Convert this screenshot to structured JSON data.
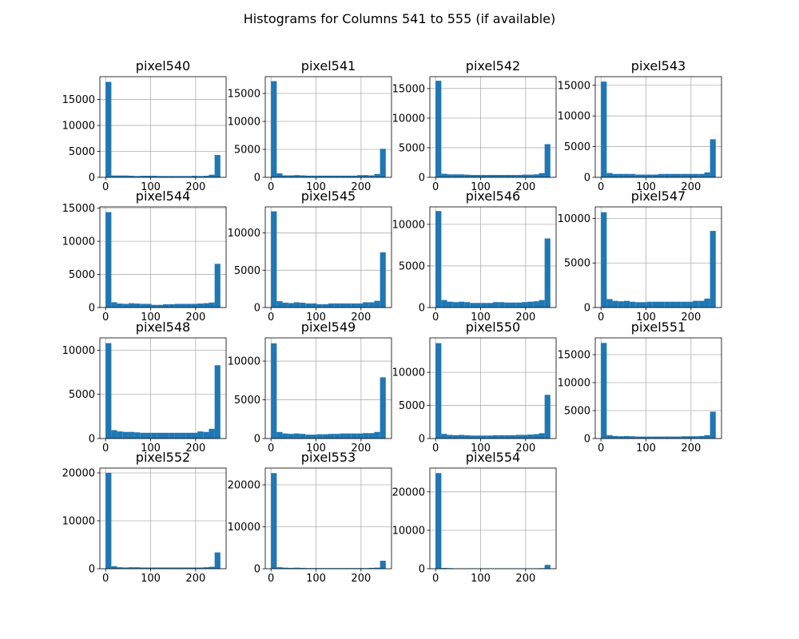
{
  "chart_data": {
    "type": "bar",
    "title": "Histograms for Columns 541 to 555 (if available)",
    "bins": 20,
    "x_range": [
      0,
      255
    ],
    "x_ticks": [
      0,
      100,
      200
    ],
    "grid": true,
    "bar_color": "#1f77b4",
    "panels": [
      {
        "name": "pixel540",
        "ymax": 19400,
        "yticks": [
          0,
          5000,
          10000,
          15000
        ],
        "values": [
          18400,
          350,
          350,
          350,
          300,
          250,
          300,
          300,
          300,
          250,
          250,
          250,
          250,
          250,
          250,
          300,
          250,
          300,
          500,
          4300
        ]
      },
      {
        "name": "pixel541",
        "ymax": 18000,
        "yticks": [
          0,
          5000,
          10000,
          15000
        ],
        "values": [
          17200,
          700,
          350,
          350,
          400,
          350,
          300,
          300,
          300,
          300,
          300,
          300,
          300,
          300,
          300,
          400,
          400,
          350,
          600,
          5100
        ]
      },
      {
        "name": "pixel542",
        "ymax": 17000,
        "yticks": [
          0,
          5000,
          10000,
          15000
        ],
        "values": [
          16300,
          600,
          500,
          500,
          500,
          450,
          400,
          400,
          400,
          400,
          400,
          400,
          400,
          400,
          400,
          450,
          450,
          500,
          700,
          5600
        ]
      },
      {
        "name": "pixel543",
        "ymax": 16400,
        "yticks": [
          0,
          5000,
          10000,
          15000
        ],
        "values": [
          15600,
          700,
          550,
          550,
          550,
          550,
          450,
          450,
          450,
          450,
          550,
          550,
          550,
          550,
          550,
          550,
          550,
          550,
          800,
          6200
        ]
      },
      {
        "name": "pixel544",
        "ymax": 15200,
        "yticks": [
          0,
          5000,
          10000,
          15000
        ],
        "values": [
          14400,
          800,
          600,
          550,
          650,
          600,
          550,
          550,
          400,
          400,
          500,
          500,
          550,
          550,
          550,
          550,
          600,
          650,
          750,
          6600
        ]
      },
      {
        "name": "pixel545",
        "ymax": 13500,
        "yticks": [
          0,
          5000,
          10000
        ],
        "values": [
          12900,
          850,
          650,
          600,
          700,
          650,
          550,
          550,
          450,
          450,
          550,
          550,
          550,
          550,
          550,
          550,
          700,
          700,
          900,
          7400
        ]
      },
      {
        "name": "pixel546",
        "ymax": 12100,
        "yticks": [
          0,
          5000,
          10000
        ],
        "values": [
          11600,
          900,
          700,
          650,
          700,
          650,
          550,
          550,
          550,
          550,
          650,
          650,
          600,
          600,
          600,
          650,
          700,
          750,
          900,
          8300
        ]
      },
      {
        "name": "pixel547",
        "ymax": 11300,
        "yticks": [
          0,
          5000,
          10000
        ],
        "values": [
          10700,
          950,
          750,
          700,
          750,
          650,
          600,
          600,
          650,
          650,
          650,
          650,
          650,
          650,
          650,
          650,
          750,
          750,
          1000,
          8600
        ]
      },
      {
        "name": "pixel548",
        "ymax": 11400,
        "yticks": [
          0,
          5000,
          10000
        ],
        "values": [
          10800,
          950,
          800,
          750,
          750,
          700,
          650,
          650,
          650,
          650,
          650,
          650,
          650,
          650,
          650,
          650,
          800,
          750,
          1100,
          8300
        ]
      },
      {
        "name": "pixel549",
        "ymax": 13000,
        "yticks": [
          0,
          5000,
          10000
        ],
        "values": [
          12300,
          850,
          650,
          600,
          650,
          600,
          500,
          500,
          550,
          550,
          600,
          600,
          650,
          650,
          650,
          650,
          700,
          700,
          850,
          7900
        ]
      },
      {
        "name": "pixel550",
        "ymax": 15200,
        "yticks": [
          0,
          5000,
          10000
        ],
        "values": [
          14400,
          700,
          550,
          500,
          550,
          500,
          450,
          450,
          450,
          450,
          500,
          500,
          500,
          500,
          550,
          550,
          600,
          650,
          800,
          6600
        ]
      },
      {
        "name": "pixel551",
        "ymax": 18000,
        "yticks": [
          0,
          5000,
          10000,
          15000
        ],
        "values": [
          17100,
          600,
          450,
          400,
          450,
          400,
          350,
          350,
          350,
          350,
          350,
          350,
          350,
          350,
          400,
          400,
          400,
          450,
          600,
          4800
        ]
      },
      {
        "name": "pixel552",
        "ymax": 21000,
        "yticks": [
          0,
          10000,
          20000
        ],
        "values": [
          20000,
          500,
          300,
          250,
          300,
          300,
          250,
          250,
          250,
          250,
          250,
          250,
          250,
          250,
          250,
          250,
          250,
          300,
          400,
          3400
        ]
      },
      {
        "name": "pixel553",
        "ymax": 24000,
        "yticks": [
          0,
          10000,
          20000
        ],
        "values": [
          22800,
          350,
          250,
          200,
          250,
          200,
          150,
          150,
          150,
          150,
          150,
          150,
          150,
          150,
          150,
          150,
          150,
          200,
          250,
          1900
        ]
      },
      {
        "name": "pixel554",
        "ymax": 26200,
        "yticks": [
          0,
          10000,
          20000
        ],
        "values": [
          24900,
          200,
          150,
          100,
          100,
          100,
          100,
          100,
          100,
          100,
          100,
          100,
          100,
          100,
          100,
          100,
          100,
          100,
          150,
          1000
        ]
      }
    ]
  }
}
